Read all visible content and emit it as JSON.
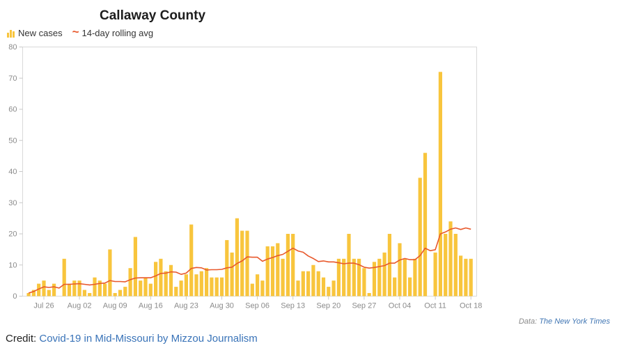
{
  "title": "Callaway County",
  "legend": {
    "bars_label": "New cases",
    "line_label": "14-day rolling avg",
    "wave_glyph": "~"
  },
  "footer": {
    "data_label": "Data:",
    "data_source_link": "The New York Times",
    "credit_label": "Credit:",
    "credit_link": "Covid-19 in Mid-Missouri by Mizzou Journalism"
  },
  "colors": {
    "bar": "#F8C53D",
    "line": "#E8582B",
    "axis_text": "#8a8a8a",
    "frame": "#d9d9d9",
    "link_blue": "#3973b8"
  },
  "chart_data": {
    "type": "bar",
    "title": "Callaway County",
    "xlabel": "",
    "ylabel": "",
    "ylim": [
      0,
      80
    ],
    "yticks": [
      0,
      10,
      20,
      30,
      40,
      50,
      60,
      70,
      80
    ],
    "grid": false,
    "legend_position": "top-left",
    "categories": [
      "Jul 23",
      "Jul 24",
      "Jul 25",
      "Jul 26",
      "Jul 27",
      "Jul 28",
      "Jul 29",
      "Jul 30",
      "Jul 31",
      "Aug 01",
      "Aug 02",
      "Aug 03",
      "Aug 04",
      "Aug 05",
      "Aug 06",
      "Aug 07",
      "Aug 08",
      "Aug 09",
      "Aug 10",
      "Aug 11",
      "Aug 12",
      "Aug 13",
      "Aug 14",
      "Aug 15",
      "Aug 16",
      "Aug 17",
      "Aug 18",
      "Aug 19",
      "Aug 20",
      "Aug 21",
      "Aug 22",
      "Aug 23",
      "Aug 24",
      "Aug 25",
      "Aug 26",
      "Aug 27",
      "Aug 28",
      "Aug 29",
      "Aug 30",
      "Aug 31",
      "Sep 01",
      "Sep 02",
      "Sep 03",
      "Sep 04",
      "Sep 05",
      "Sep 06",
      "Sep 07",
      "Sep 08",
      "Sep 09",
      "Sep 10",
      "Sep 11",
      "Sep 12",
      "Sep 13",
      "Sep 14",
      "Sep 15",
      "Sep 16",
      "Sep 17",
      "Sep 18",
      "Sep 19",
      "Sep 20",
      "Sep 21",
      "Sep 22",
      "Sep 23",
      "Sep 24",
      "Sep 25",
      "Sep 26",
      "Sep 27",
      "Sep 28",
      "Sep 29",
      "Sep 30",
      "Oct 01",
      "Oct 02",
      "Oct 03",
      "Oct 04",
      "Oct 05",
      "Oct 06",
      "Oct 07",
      "Oct 08",
      "Oct 09",
      "Oct 10",
      "Oct 11",
      "Oct 12",
      "Oct 13",
      "Oct 14",
      "Oct 15",
      "Oct 16",
      "Oct 17",
      "Oct 18"
    ],
    "xticks": [
      {
        "index": 3,
        "label": "Jul 26"
      },
      {
        "index": 10,
        "label": "Aug 02"
      },
      {
        "index": 17,
        "label": "Aug 09"
      },
      {
        "index": 24,
        "label": "Aug 16"
      },
      {
        "index": 31,
        "label": "Aug 23"
      },
      {
        "index": 38,
        "label": "Aug 30"
      },
      {
        "index": 45,
        "label": "Sep 06"
      },
      {
        "index": 52,
        "label": "Sep 13"
      },
      {
        "index": 59,
        "label": "Sep 20"
      },
      {
        "index": 66,
        "label": "Sep 27"
      },
      {
        "index": 73,
        "label": "Oct 04"
      },
      {
        "index": 80,
        "label": "Oct 11"
      },
      {
        "index": 87,
        "label": "Oct 18"
      }
    ],
    "series": [
      {
        "name": "New cases",
        "type": "bar",
        "color": "#F8C53D",
        "values": [
          1,
          2,
          4,
          5,
          2,
          4,
          0,
          12,
          4,
          5,
          5,
          2,
          1,
          6,
          5,
          4,
          15,
          1,
          2,
          3,
          9,
          19,
          5,
          6,
          4,
          11,
          12,
          8,
          10,
          3,
          5,
          7,
          23,
          7,
          8,
          9,
          6,
          6,
          6,
          18,
          14,
          25,
          21,
          21,
          4,
          7,
          5,
          16,
          16,
          17,
          12,
          20,
          20,
          5,
          8,
          8,
          10,
          8,
          6,
          3,
          5,
          12,
          12,
          20,
          12,
          12,
          9,
          1,
          11,
          12,
          14,
          20,
          6,
          17,
          12,
          6,
          12,
          38,
          46,
          0,
          14,
          72,
          20,
          24,
          20,
          13,
          12,
          12
        ]
      },
      {
        "name": "14-day rolling avg",
        "type": "line",
        "color": "#E8582B",
        "values": [
          1.0,
          1.5,
          2.3,
          3.0,
          2.8,
          3.0,
          2.6,
          3.8,
          3.8,
          3.9,
          4.0,
          3.8,
          3.6,
          3.8,
          4.1,
          4.2,
          5.0,
          4.7,
          4.7,
          4.6,
          5.3,
          5.8,
          5.9,
          5.9,
          5.9,
          6.5,
          7.3,
          7.4,
          7.8,
          7.7,
          7.0,
          7.4,
          8.9,
          9.2,
          9.1,
          8.4,
          8.5,
          8.5,
          8.6,
          9.1,
          9.3,
          10.5,
          11.3,
          12.6,
          12.5,
          12.5,
          11.2,
          11.9,
          12.4,
          13.0,
          13.4,
          14.4,
          15.4,
          14.5,
          14.1,
          12.9,
          12.1,
          11.1,
          11.3,
          11.0,
          11.0,
          10.7,
          10.4,
          10.6,
          10.6,
          10.1,
          9.3,
          9.0,
          9.2,
          9.5,
          9.8,
          10.6,
          10.6,
          11.6,
          12.1,
          11.7,
          11.7,
          13.0,
          15.4,
          14.6,
          14.9,
          20.0,
          20.6,
          21.5,
          21.9,
          21.4,
          21.9,
          21.5
        ]
      }
    ]
  }
}
